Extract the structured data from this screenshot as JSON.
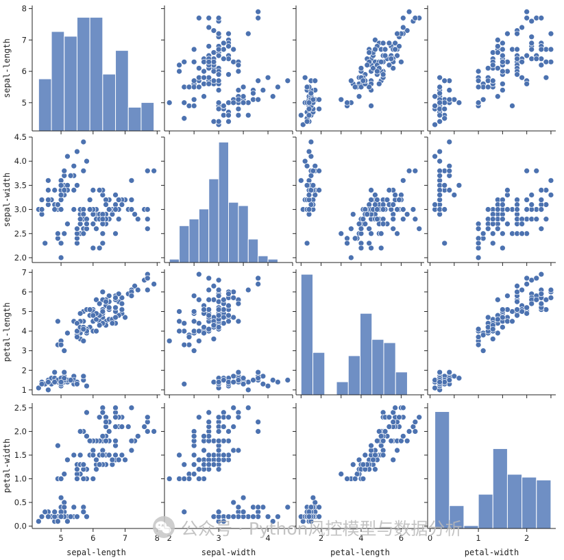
{
  "chart_data": {
    "type": "scatter",
    "kind": "pairplot",
    "variables": [
      "sepal-length",
      "sepal-width",
      "petal-length",
      "petal-width"
    ],
    "colors": {
      "marker": "#4c72b0",
      "bar": "#6f8fc4",
      "bar_edge": "#ffffff",
      "marker_edge": "#ffffff"
    },
    "axes": {
      "sepal-length": {
        "lim": [
          4.1,
          8.1
        ],
        "ticks": [
          5,
          6,
          7,
          8
        ],
        "tick_labels": [
          "5",
          "6",
          "7",
          "8"
        ]
      },
      "sepal-width": {
        "lim": [
          1.9,
          4.5
        ],
        "ticks": [
          2.0,
          2.5,
          3.0,
          3.5,
          4.0,
          4.5
        ],
        "tick_labels": [
          "2.0",
          "2.5",
          "3.0",
          "3.5",
          "4.0",
          "4.5"
        ]
      },
      "petal-length": {
        "lim": [
          0.75,
          7.15
        ],
        "ticks": [
          1,
          2,
          3,
          4,
          5,
          6,
          7
        ],
        "tick_labels": [
          "1",
          "2",
          "3",
          "4",
          "5",
          "6",
          "7"
        ]
      },
      "petal-width": {
        "lim": [
          -0.05,
          2.6
        ],
        "ticks": [
          0.0,
          0.5,
          1.0,
          1.5,
          2.0,
          2.5
        ],
        "tick_labels": [
          "0.0",
          "0.5",
          "1.0",
          "1.5",
          "2.0",
          "2.5"
        ]
      }
    },
    "bottom_axes": {
      "sepal-width": {
        "ticks": [
          2,
          3,
          4
        ],
        "tick_labels": [
          "2",
          "3",
          "4"
        ]
      },
      "petal-length": {
        "ticks": [
          2,
          4,
          6
        ],
        "tick_labels": [
          "2",
          "4",
          "6"
        ]
      },
      "petal-width": {
        "ticks": [
          0,
          1,
          2
        ],
        "tick_labels": [
          "0",
          "1",
          "2"
        ]
      }
    },
    "histograms": {
      "sepal-length": {
        "edges": [
          4.3,
          4.7,
          5.1,
          5.5,
          5.9,
          6.3,
          6.7,
          7.1,
          7.5,
          7.9
        ],
        "counts": [
          11,
          21,
          20,
          24,
          24,
          12,
          17,
          5,
          6
        ],
        "ymax": 26.5
      },
      "sepal-width": {
        "edges": [
          2.0,
          2.2,
          2.4,
          2.6,
          2.8,
          3.0,
          3.2,
          3.4,
          3.6,
          3.8,
          4.0,
          4.2,
          4.4
        ],
        "counts": [
          1,
          11,
          13,
          16,
          25,
          36,
          18,
          17,
          7,
          2,
          1,
          0
        ],
        "ymax": 37.5
      },
      "petal-length": {
        "edges": [
          1.0,
          1.59,
          2.18,
          2.77,
          3.36,
          3.95,
          4.54,
          5.13,
          5.72,
          6.31,
          6.9
        ],
        "counts": [
          37,
          13,
          0,
          4,
          12,
          25,
          17,
          16,
          7,
          0
        ],
        "ymax": 38.5
      },
      "petal-width": {
        "edges": [
          0.1,
          0.4,
          0.7,
          1.0,
          1.3,
          1.6,
          1.9,
          2.2,
          2.5
        ],
        "counts": [
          41,
          8,
          1,
          12,
          28,
          19,
          18,
          17
        ],
        "ymax": 44
      }
    },
    "points": [
      [
        5.1,
        3.5,
        1.4,
        0.2
      ],
      [
        4.9,
        3.0,
        1.4,
        0.2
      ],
      [
        4.7,
        3.2,
        1.3,
        0.2
      ],
      [
        4.6,
        3.1,
        1.5,
        0.2
      ],
      [
        5.0,
        3.6,
        1.4,
        0.2
      ],
      [
        5.4,
        3.9,
        1.7,
        0.4
      ],
      [
        4.6,
        3.4,
        1.4,
        0.3
      ],
      [
        5.0,
        3.4,
        1.5,
        0.2
      ],
      [
        4.4,
        2.9,
        1.4,
        0.2
      ],
      [
        4.9,
        3.1,
        1.5,
        0.1
      ],
      [
        5.4,
        3.7,
        1.5,
        0.2
      ],
      [
        4.8,
        3.4,
        1.6,
        0.2
      ],
      [
        4.8,
        3.0,
        1.4,
        0.1
      ],
      [
        4.3,
        3.0,
        1.1,
        0.1
      ],
      [
        5.8,
        4.0,
        1.2,
        0.2
      ],
      [
        5.7,
        4.4,
        1.5,
        0.4
      ],
      [
        5.4,
        3.9,
        1.3,
        0.4
      ],
      [
        5.1,
        3.5,
        1.4,
        0.3
      ],
      [
        5.7,
        3.8,
        1.7,
        0.3
      ],
      [
        5.1,
        3.8,
        1.5,
        0.3
      ],
      [
        5.4,
        3.4,
        1.7,
        0.2
      ],
      [
        5.1,
        3.7,
        1.5,
        0.4
      ],
      [
        4.6,
        3.6,
        1.0,
        0.2
      ],
      [
        5.1,
        3.3,
        1.7,
        0.5
      ],
      [
        4.8,
        3.4,
        1.9,
        0.2
      ],
      [
        5.0,
        3.0,
        1.6,
        0.2
      ],
      [
        5.0,
        3.4,
        1.6,
        0.4
      ],
      [
        5.2,
        3.5,
        1.5,
        0.2
      ],
      [
        5.2,
        3.4,
        1.4,
        0.2
      ],
      [
        4.7,
        3.2,
        1.6,
        0.2
      ],
      [
        4.8,
        3.1,
        1.6,
        0.2
      ],
      [
        5.4,
        3.4,
        1.5,
        0.4
      ],
      [
        5.2,
        4.1,
        1.5,
        0.1
      ],
      [
        5.5,
        4.2,
        1.4,
        0.2
      ],
      [
        4.9,
        3.1,
        1.5,
        0.1
      ],
      [
        5.0,
        3.2,
        1.2,
        0.2
      ],
      [
        5.5,
        3.5,
        1.3,
        0.2
      ],
      [
        4.9,
        3.1,
        1.5,
        0.1
      ],
      [
        4.4,
        3.0,
        1.3,
        0.2
      ],
      [
        5.1,
        3.4,
        1.5,
        0.2
      ],
      [
        5.0,
        3.5,
        1.3,
        0.3
      ],
      [
        4.5,
        2.3,
        1.3,
        0.3
      ],
      [
        4.4,
        3.2,
        1.3,
        0.2
      ],
      [
        5.0,
        3.5,
        1.6,
        0.6
      ],
      [
        5.1,
        3.8,
        1.9,
        0.4
      ],
      [
        4.8,
        3.0,
        1.4,
        0.3
      ],
      [
        5.1,
        3.8,
        1.6,
        0.2
      ],
      [
        4.6,
        3.2,
        1.4,
        0.2
      ],
      [
        5.3,
        3.7,
        1.5,
        0.2
      ],
      [
        5.0,
        3.3,
        1.4,
        0.2
      ],
      [
        7.0,
        3.2,
        4.7,
        1.4
      ],
      [
        6.4,
        3.2,
        4.5,
        1.5
      ],
      [
        6.9,
        3.1,
        4.9,
        1.5
      ],
      [
        5.5,
        2.3,
        4.0,
        1.3
      ],
      [
        6.5,
        2.8,
        4.6,
        1.5
      ],
      [
        5.7,
        2.8,
        4.5,
        1.3
      ],
      [
        6.3,
        3.3,
        4.7,
        1.6
      ],
      [
        4.9,
        2.4,
        3.3,
        1.0
      ],
      [
        6.6,
        2.9,
        4.6,
        1.3
      ],
      [
        5.2,
        2.7,
        3.9,
        1.4
      ],
      [
        5.0,
        2.0,
        3.5,
        1.0
      ],
      [
        5.9,
        3.0,
        4.2,
        1.5
      ],
      [
        6.0,
        2.2,
        4.0,
        1.0
      ],
      [
        6.1,
        2.9,
        4.7,
        1.4
      ],
      [
        5.6,
        2.9,
        3.6,
        1.3
      ],
      [
        6.7,
        3.1,
        4.4,
        1.4
      ],
      [
        5.6,
        3.0,
        4.5,
        1.5
      ],
      [
        5.8,
        2.7,
        4.1,
        1.0
      ],
      [
        6.2,
        2.2,
        4.5,
        1.5
      ],
      [
        5.6,
        2.5,
        3.9,
        1.1
      ],
      [
        5.9,
        3.2,
        4.8,
        1.8
      ],
      [
        6.1,
        2.8,
        4.0,
        1.3
      ],
      [
        6.3,
        2.5,
        4.9,
        1.5
      ],
      [
        6.1,
        2.8,
        4.7,
        1.2
      ],
      [
        6.4,
        2.9,
        4.3,
        1.3
      ],
      [
        6.6,
        3.0,
        4.4,
        1.4
      ],
      [
        6.8,
        2.8,
        4.8,
        1.4
      ],
      [
        6.7,
        3.0,
        5.0,
        1.7
      ],
      [
        6.0,
        2.9,
        4.5,
        1.5
      ],
      [
        5.7,
        2.6,
        3.5,
        1.0
      ],
      [
        5.5,
        2.4,
        3.8,
        1.1
      ],
      [
        5.5,
        2.4,
        3.7,
        1.0
      ],
      [
        5.8,
        2.7,
        3.9,
        1.2
      ],
      [
        6.0,
        2.7,
        5.1,
        1.6
      ],
      [
        5.4,
        3.0,
        4.5,
        1.5
      ],
      [
        6.0,
        3.4,
        4.5,
        1.6
      ],
      [
        6.7,
        3.1,
        4.7,
        1.5
      ],
      [
        6.3,
        2.3,
        4.4,
        1.3
      ],
      [
        5.6,
        3.0,
        4.1,
        1.3
      ],
      [
        5.5,
        2.5,
        4.0,
        1.3
      ],
      [
        5.5,
        2.6,
        4.4,
        1.2
      ],
      [
        6.1,
        3.0,
        4.6,
        1.4
      ],
      [
        5.8,
        2.6,
        4.0,
        1.2
      ],
      [
        5.0,
        2.3,
        3.3,
        1.0
      ],
      [
        5.6,
        2.7,
        4.2,
        1.3
      ],
      [
        5.7,
        3.0,
        4.2,
        1.2
      ],
      [
        5.7,
        2.9,
        4.2,
        1.3
      ],
      [
        6.2,
        2.9,
        4.3,
        1.3
      ],
      [
        5.1,
        2.5,
        3.0,
        1.1
      ],
      [
        5.7,
        2.8,
        4.1,
        1.3
      ],
      [
        6.3,
        3.3,
        6.0,
        2.5
      ],
      [
        5.8,
        2.7,
        5.1,
        1.9
      ],
      [
        7.1,
        3.0,
        5.9,
        2.1
      ],
      [
        6.3,
        2.9,
        5.6,
        1.8
      ],
      [
        6.5,
        3.0,
        5.8,
        2.2
      ],
      [
        7.6,
        3.0,
        6.6,
        2.1
      ],
      [
        4.9,
        2.5,
        4.5,
        1.7
      ],
      [
        7.3,
        2.9,
        6.3,
        1.8
      ],
      [
        6.7,
        2.5,
        5.8,
        1.8
      ],
      [
        7.2,
        3.6,
        6.1,
        2.5
      ],
      [
        6.5,
        3.2,
        5.1,
        2.0
      ],
      [
        6.4,
        2.7,
        5.3,
        1.9
      ],
      [
        6.8,
        3.0,
        5.5,
        2.1
      ],
      [
        5.7,
        2.5,
        5.0,
        2.0
      ],
      [
        5.8,
        2.8,
        5.1,
        2.4
      ],
      [
        6.4,
        3.2,
        5.3,
        2.3
      ],
      [
        6.5,
        3.0,
        5.5,
        1.8
      ],
      [
        7.7,
        3.8,
        6.7,
        2.2
      ],
      [
        7.7,
        2.6,
        6.9,
        2.3
      ],
      [
        6.0,
        2.2,
        5.0,
        1.5
      ],
      [
        6.9,
        3.2,
        5.7,
        2.3
      ],
      [
        5.6,
        2.8,
        4.9,
        2.0
      ],
      [
        7.7,
        2.8,
        6.7,
        2.0
      ],
      [
        6.3,
        2.7,
        4.9,
        1.8
      ],
      [
        6.7,
        3.3,
        5.7,
        2.1
      ],
      [
        7.2,
        3.2,
        6.0,
        1.8
      ],
      [
        6.2,
        2.8,
        4.8,
        1.8
      ],
      [
        6.1,
        3.0,
        4.9,
        1.8
      ],
      [
        6.4,
        2.8,
        5.6,
        2.1
      ],
      [
        7.2,
        3.0,
        5.8,
        1.6
      ],
      [
        7.4,
        2.8,
        6.1,
        1.9
      ],
      [
        7.9,
        3.8,
        6.4,
        2.0
      ],
      [
        6.4,
        2.8,
        5.6,
        2.2
      ],
      [
        6.3,
        2.8,
        5.1,
        1.5
      ],
      [
        6.1,
        2.6,
        5.6,
        1.4
      ],
      [
        7.7,
        3.0,
        6.1,
        2.3
      ],
      [
        6.3,
        3.4,
        5.6,
        2.4
      ],
      [
        6.4,
        3.1,
        5.5,
        1.8
      ],
      [
        6.0,
        3.0,
        4.8,
        1.8
      ],
      [
        6.9,
        3.1,
        5.4,
        2.1
      ],
      [
        6.7,
        3.1,
        5.6,
        2.4
      ],
      [
        6.9,
        3.1,
        5.1,
        2.3
      ],
      [
        5.8,
        2.7,
        5.1,
        1.9
      ],
      [
        6.8,
        3.2,
        5.9,
        2.3
      ],
      [
        6.7,
        3.3,
        5.7,
        2.5
      ],
      [
        6.7,
        3.0,
        5.2,
        2.3
      ],
      [
        6.3,
        2.5,
        5.0,
        1.9
      ],
      [
        6.5,
        3.0,
        5.2,
        2.0
      ],
      [
        6.2,
        3.4,
        5.4,
        2.3
      ],
      [
        5.9,
        3.0,
        5.1,
        1.8
      ]
    ]
  },
  "watermark": {
    "text": "公众号 · Python风控模型与数据分析",
    "icon": "wechat-icon"
  }
}
